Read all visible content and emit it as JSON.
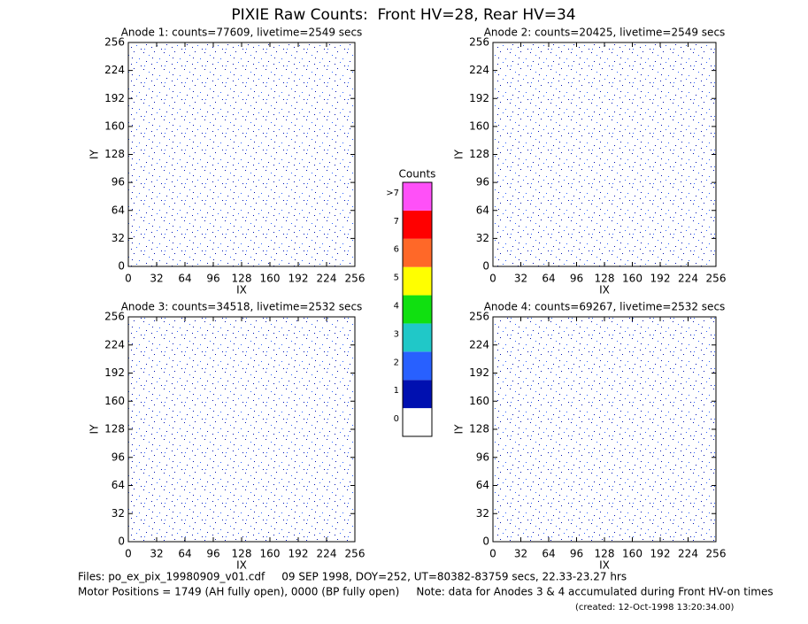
{
  "title": "PIXIE Raw Counts:  Front HV=28, Rear HV=34",
  "chart_data": [
    {
      "type": "heatmap",
      "title": "Anode 1: counts=77609, livetime=2549 secs",
      "xlabel": "IX",
      "ylabel": "IY",
      "xlim": [
        0,
        256
      ],
      "ylim": [
        0,
        256
      ],
      "xticks": [
        0,
        32,
        64,
        96,
        128,
        160,
        192,
        224,
        256
      ],
      "yticks": [
        0,
        32,
        64,
        96,
        128,
        160,
        192,
        224,
        256
      ]
    },
    {
      "type": "heatmap",
      "title": "Anode 2: counts=20425, livetime=2549 secs",
      "xlabel": "IX",
      "ylabel": "IY",
      "xlim": [
        0,
        256
      ],
      "ylim": [
        0,
        256
      ],
      "xticks": [
        0,
        32,
        64,
        96,
        128,
        160,
        192,
        224,
        256
      ],
      "yticks": [
        0,
        32,
        64,
        96,
        128,
        160,
        192,
        224,
        256
      ]
    },
    {
      "type": "heatmap",
      "title": "Anode 3: counts=34518, livetime=2532 secs",
      "xlabel": "IX",
      "ylabel": "IY",
      "xlim": [
        0,
        256
      ],
      "ylim": [
        0,
        256
      ],
      "xticks": [
        0,
        32,
        64,
        96,
        128,
        160,
        192,
        224,
        256
      ],
      "yticks": [
        0,
        32,
        64,
        96,
        128,
        160,
        192,
        224,
        256
      ]
    },
    {
      "type": "heatmap",
      "title": "Anode 4: counts=69267, livetime=2532 secs",
      "xlabel": "IX",
      "ylabel": "IY",
      "xlim": [
        0,
        256
      ],
      "ylim": [
        0,
        256
      ],
      "xticks": [
        0,
        32,
        64,
        96,
        128,
        160,
        192,
        224,
        256
      ],
      "yticks": [
        0,
        32,
        64,
        96,
        128,
        160,
        192,
        224,
        256
      ]
    }
  ],
  "colorbar": {
    "title": "Counts",
    "labels": [
      "0",
      "1",
      "2",
      "3",
      "4",
      "5",
      "6",
      "7",
      ">7"
    ],
    "colors": [
      "#ffffff",
      "#0010b0",
      "#2860ff",
      "#20c8c8",
      "#10e010",
      "#ffff00",
      "#ff6828",
      "#ff0000",
      "#ff50f8"
    ]
  },
  "footer": {
    "line1": "Files: po_ex_pix_19980909_v01.cdf     09 SEP 1998, DOY=252, UT=80382-83759 secs, 22.33-23.27 hrs",
    "line2": "Motor Positions = 1749 (AH fully open), 0000 (BP fully open)     Note: data for Anodes 3 & 4 accumulated during Front HV-on times",
    "line3": "(created: 12-Oct-1998 13:20:34.00)"
  }
}
